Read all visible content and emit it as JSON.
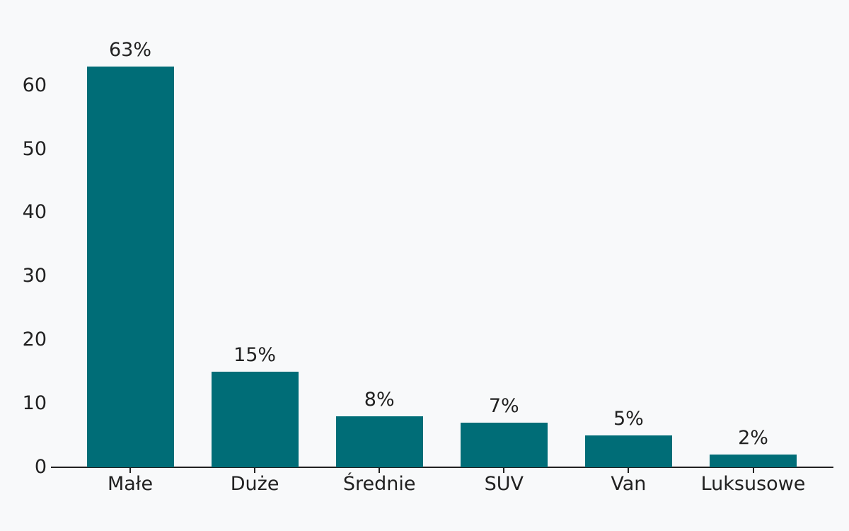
{
  "chart_data": {
    "type": "bar",
    "title": "",
    "xlabel": "",
    "ylabel": "",
    "categories": [
      "Małe",
      "Duże",
      "Średnie",
      "SUV",
      "Van",
      "Luksusowe"
    ],
    "values": [
      63,
      15,
      8,
      7,
      5,
      2
    ],
    "bar_labels": [
      "63%",
      "15%",
      "8%",
      "7%",
      "5%",
      "2%"
    ],
    "yticks": [
      0,
      10,
      20,
      30,
      40,
      50,
      60
    ],
    "ylim": [
      0,
      63
    ],
    "grid": false,
    "legend": false,
    "colors": {
      "bar": "#006d77",
      "background": "#f8f9fa",
      "text": "#212121",
      "axis": "#212121"
    }
  }
}
